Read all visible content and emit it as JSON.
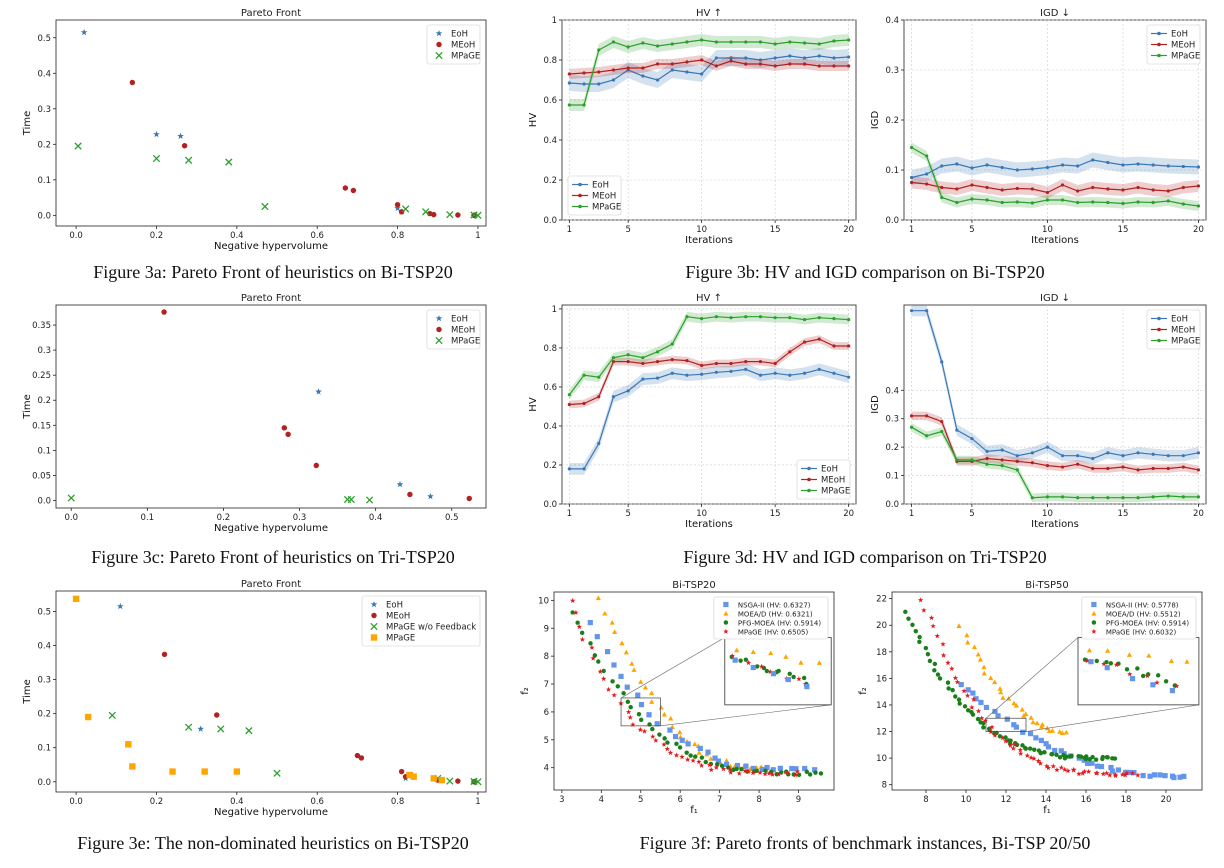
{
  "captions": {
    "fig3a": "Figure 3a: Pareto Front of heuristics on Bi-TSP20",
    "fig3b": "Figure 3b: HV and IGD comparison on Bi-TSP20",
    "fig3c": "Figure 3c: Pareto Front of heuristics on Tri-TSP20",
    "fig3d": "Figure 3d: HV and IGD comparison on Tri-TSP20",
    "fig3e": "Figure 3e: The non-dominated heuristics on Bi-TSP20",
    "fig3f": "Figure 3f: Pareto fronts of benchmark instances, Bi-TSP 20/50"
  },
  "colors": {
    "eoh": "#3a78b5",
    "meoh": "#b22222",
    "mpage": "#2ca02c",
    "mpage_sq": "#ffa500",
    "nsga": "#6495ed",
    "moead": "#ffa500",
    "pfg": "#1a7f1a",
    "mpage_star": "#e41a1c"
  },
  "chart_data": [
    {
      "id": "a",
      "type": "scatter",
      "title": "Pareto Front",
      "xlabel": "Negative hypervolume",
      "ylabel": "Time",
      "xlim": [
        -0.05,
        1.02
      ],
      "ylim": [
        -0.03,
        0.55
      ],
      "xticks": [
        0.0,
        0.2,
        0.4,
        0.6,
        0.8,
        1.0
      ],
      "yticks": [
        0.0,
        0.1,
        0.2,
        0.3,
        0.4,
        0.5
      ],
      "legend": "top-right",
      "series": [
        {
          "name": "EoH",
          "marker": "star",
          "color": "#3a78b5",
          "points": [
            [
              0.02,
              0.515
            ],
            [
              0.2,
              0.228
            ],
            [
              0.26,
              0.223
            ],
            [
              0.8,
              0.02
            ],
            [
              0.81,
              0.01
            ]
          ]
        },
        {
          "name": "MEoH",
          "marker": "circle",
          "color": "#b22222",
          "points": [
            [
              0.14,
              0.374
            ],
            [
              0.27,
              0.196
            ],
            [
              0.67,
              0.077
            ],
            [
              0.69,
              0.07
            ],
            [
              0.8,
              0.03
            ],
            [
              0.81,
              0.01
            ],
            [
              0.88,
              0.005
            ],
            [
              0.89,
              0.002
            ],
            [
              0.95,
              0.001
            ],
            [
              0.99,
              0.0
            ]
          ]
        },
        {
          "name": "MPaGE",
          "marker": "x",
          "color": "#2ca02c",
          "points": [
            [
              0.005,
              0.195
            ],
            [
              0.2,
              0.16
            ],
            [
              0.28,
              0.155
            ],
            [
              0.38,
              0.15
            ],
            [
              0.47,
              0.025
            ],
            [
              0.82,
              0.018
            ],
            [
              0.87,
              0.01
            ],
            [
              0.93,
              0.002
            ],
            [
              0.99,
              0.001
            ],
            [
              1.0,
              0.0
            ]
          ]
        }
      ]
    },
    {
      "id": "b1",
      "type": "line",
      "title": "HV ↑",
      "xlabel": "Iterations",
      "ylabel": "HV",
      "xlim": [
        0.5,
        20.5
      ],
      "ylim": [
        0.0,
        1.0
      ],
      "xticks": [
        1,
        5,
        10,
        15,
        20
      ],
      "yticks": [
        0.0,
        0.2,
        0.4,
        0.6,
        0.8,
        1.0
      ],
      "legend": "bottom-left",
      "x": [
        1,
        2,
        3,
        4,
        5,
        6,
        7,
        8,
        9,
        10,
        11,
        12,
        13,
        14,
        15,
        16,
        17,
        18,
        19,
        20
      ],
      "series": [
        {
          "name": "EoH",
          "color": "#3a78b5",
          "band": 0.04,
          "values": [
            0.685,
            0.68,
            0.68,
            0.7,
            0.75,
            0.72,
            0.7,
            0.75,
            0.74,
            0.73,
            0.81,
            0.81,
            0.81,
            0.8,
            0.81,
            0.82,
            0.81,
            0.82,
            0.81,
            0.815
          ]
        },
        {
          "name": "MEoH",
          "color": "#b22222",
          "band": 0.025,
          "values": [
            0.73,
            0.735,
            0.74,
            0.75,
            0.76,
            0.76,
            0.78,
            0.78,
            0.79,
            0.8,
            0.77,
            0.795,
            0.78,
            0.78,
            0.77,
            0.78,
            0.78,
            0.77,
            0.77,
            0.77
          ]
        },
        {
          "name": "MPaGE",
          "color": "#2ca02c",
          "band": 0.03,
          "values": [
            0.575,
            0.575,
            0.85,
            0.89,
            0.865,
            0.885,
            0.87,
            0.88,
            0.89,
            0.9,
            0.89,
            0.89,
            0.89,
            0.89,
            0.88,
            0.89,
            0.885,
            0.88,
            0.895,
            0.9
          ]
        }
      ]
    },
    {
      "id": "b2",
      "type": "line",
      "title": "IGD ↓",
      "xlabel": "Iterations",
      "ylabel": "IGD",
      "xlim": [
        0.5,
        20.5
      ],
      "ylim": [
        0.0,
        0.4
      ],
      "xticks": [
        1,
        5,
        10,
        15,
        20
      ],
      "yticks": [
        0.0,
        0.1,
        0.2,
        0.3,
        0.4
      ],
      "legend": "top-right",
      "x": [
        1,
        2,
        3,
        4,
        5,
        6,
        7,
        8,
        9,
        10,
        11,
        12,
        13,
        14,
        15,
        16,
        17,
        18,
        19,
        20
      ],
      "series": [
        {
          "name": "EoH",
          "color": "#3a78b5",
          "band": 0.015,
          "values": [
            0.085,
            0.092,
            0.108,
            0.112,
            0.104,
            0.11,
            0.105,
            0.1,
            0.102,
            0.105,
            0.11,
            0.108,
            0.12,
            0.115,
            0.11,
            0.112,
            0.11,
            0.108,
            0.107,
            0.106
          ]
        },
        {
          "name": "MEoH",
          "color": "#b22222",
          "band": 0.012,
          "values": [
            0.075,
            0.072,
            0.065,
            0.062,
            0.07,
            0.065,
            0.06,
            0.063,
            0.062,
            0.055,
            0.07,
            0.058,
            0.065,
            0.062,
            0.06,
            0.065,
            0.06,
            0.058,
            0.065,
            0.068
          ]
        },
        {
          "name": "MPaGE",
          "color": "#2ca02c",
          "band": 0.01,
          "values": [
            0.145,
            0.128,
            0.045,
            0.035,
            0.042,
            0.04,
            0.035,
            0.036,
            0.034,
            0.04,
            0.04,
            0.035,
            0.036,
            0.035,
            0.033,
            0.036,
            0.035,
            0.038,
            0.032,
            0.028
          ]
        }
      ]
    },
    {
      "id": "c",
      "type": "scatter",
      "title": "Pareto Front",
      "xlabel": "Negative hypervolume",
      "ylabel": "Time",
      "xlim": [
        -0.02,
        0.545
      ],
      "ylim": [
        -0.015,
        0.39
      ],
      "xticks": [
        0.0,
        0.1,
        0.2,
        0.3,
        0.4,
        0.5
      ],
      "yticks": [
        0.0,
        0.05,
        0.1,
        0.15,
        0.2,
        0.25,
        0.3,
        0.35
      ],
      "legend": "top-right",
      "series": [
        {
          "name": "EoH",
          "marker": "star",
          "color": "#3a78b5",
          "points": [
            [
              0.325,
              0.217
            ],
            [
              0.432,
              0.032
            ],
            [
              0.472,
              0.008
            ]
          ]
        },
        {
          "name": "MEoH",
          "marker": "circle",
          "color": "#b22222",
          "points": [
            [
              0.122,
              0.376
            ],
            [
              0.28,
              0.145
            ],
            [
              0.285,
              0.132
            ],
            [
              0.322,
              0.07
            ],
            [
              0.445,
              0.012
            ],
            [
              0.523,
              0.004
            ]
          ]
        },
        {
          "name": "MPaGE",
          "marker": "x",
          "color": "#2ca02c",
          "points": [
            [
              0.0,
              0.005
            ],
            [
              0.363,
              0.002
            ],
            [
              0.368,
              0.002
            ],
            [
              0.392,
              0.001
            ]
          ]
        }
      ]
    },
    {
      "id": "d1",
      "type": "line",
      "title": "HV ↑",
      "xlabel": "Iterations",
      "ylabel": "HV",
      "xlim": [
        0.5,
        20.5
      ],
      "ylim": [
        0.0,
        1.02
      ],
      "xticks": [
        1,
        5,
        10,
        15,
        20
      ],
      "yticks": [
        0.0,
        0.2,
        0.4,
        0.6,
        0.8,
        1.0
      ],
      "legend": "bottom-right",
      "x": [
        1,
        2,
        3,
        4,
        5,
        6,
        7,
        8,
        9,
        10,
        11,
        12,
        13,
        14,
        15,
        16,
        17,
        18,
        19,
        20
      ],
      "series": [
        {
          "name": "EoH",
          "color": "#3a78b5",
          "band": 0.03,
          "values": [
            0.18,
            0.18,
            0.31,
            0.55,
            0.58,
            0.64,
            0.645,
            0.67,
            0.66,
            0.665,
            0.675,
            0.68,
            0.69,
            0.66,
            0.67,
            0.66,
            0.67,
            0.69,
            0.67,
            0.65
          ]
        },
        {
          "name": "MEoH",
          "color": "#b22222",
          "band": 0.02,
          "values": [
            0.51,
            0.515,
            0.55,
            0.73,
            0.73,
            0.72,
            0.73,
            0.74,
            0.735,
            0.71,
            0.72,
            0.72,
            0.73,
            0.73,
            0.72,
            0.78,
            0.83,
            0.845,
            0.81,
            0.81
          ]
        },
        {
          "name": "MPaGE",
          "color": "#2ca02c",
          "band": 0.025,
          "values": [
            0.56,
            0.66,
            0.65,
            0.75,
            0.765,
            0.75,
            0.78,
            0.82,
            0.96,
            0.95,
            0.96,
            0.955,
            0.96,
            0.96,
            0.955,
            0.955,
            0.945,
            0.955,
            0.95,
            0.945
          ]
        }
      ]
    },
    {
      "id": "d2",
      "type": "line",
      "title": "IGD ↓",
      "xlabel": "Iterations",
      "ylabel": "IGD",
      "xlim": [
        0.5,
        20.5
      ],
      "ylim": [
        0.0,
        0.7
      ],
      "xticks": [
        1,
        5,
        10,
        15,
        20
      ],
      "yticks": [
        0.0,
        0.1,
        0.2,
        0.3,
        0.4
      ],
      "legend": "top-right",
      "x": [
        1,
        2,
        3,
        4,
        5,
        6,
        7,
        8,
        9,
        10,
        11,
        12,
        13,
        14,
        15,
        16,
        17,
        18,
        19,
        20
      ],
      "series": [
        {
          "name": "EoH",
          "color": "#3a78b5",
          "band": 0.02,
          "values": [
            0.68,
            0.68,
            0.5,
            0.26,
            0.23,
            0.185,
            0.19,
            0.17,
            0.18,
            0.2,
            0.17,
            0.17,
            0.16,
            0.18,
            0.17,
            0.18,
            0.175,
            0.17,
            0.17,
            0.18
          ]
        },
        {
          "name": "MEoH",
          "color": "#b22222",
          "band": 0.015,
          "values": [
            0.31,
            0.31,
            0.29,
            0.15,
            0.15,
            0.16,
            0.155,
            0.15,
            0.145,
            0.135,
            0.13,
            0.14,
            0.125,
            0.125,
            0.13,
            0.12,
            0.125,
            0.125,
            0.13,
            0.12
          ]
        },
        {
          "name": "MPaGE",
          "color": "#2ca02c",
          "band": 0.015,
          "values": [
            0.27,
            0.24,
            0.255,
            0.155,
            0.155,
            0.14,
            0.135,
            0.12,
            0.022,
            0.025,
            0.025,
            0.022,
            0.022,
            0.022,
            0.022,
            0.022,
            0.025,
            0.028,
            0.025,
            0.025
          ]
        }
      ]
    },
    {
      "id": "e",
      "type": "scatter",
      "title": "Pareto Front",
      "xlabel": "Negative hypervolume",
      "ylabel": "Time",
      "xlim": [
        -0.05,
        1.02
      ],
      "ylim": [
        -0.03,
        0.56
      ],
      "xticks": [
        0.0,
        0.2,
        0.4,
        0.6,
        0.8,
        1.0
      ],
      "yticks": [
        0.0,
        0.1,
        0.2,
        0.3,
        0.4,
        0.5
      ],
      "legend": "top-right",
      "series": [
        {
          "name": "EoH",
          "marker": "star",
          "color": "#3a78b5",
          "points": [
            [
              0.11,
              0.515
            ],
            [
              0.31,
              0.155
            ],
            [
              0.82,
              0.01
            ]
          ]
        },
        {
          "name": "MEoH",
          "marker": "circle",
          "color": "#b22222",
          "points": [
            [
              0.22,
              0.374
            ],
            [
              0.35,
              0.196
            ],
            [
              0.7,
              0.077
            ],
            [
              0.71,
              0.07
            ],
            [
              0.81,
              0.03
            ],
            [
              0.82,
              0.015
            ],
            [
              0.9,
              0.005
            ],
            [
              0.95,
              0.002
            ],
            [
              0.99,
              0.0
            ]
          ]
        },
        {
          "name": "MPaGE w/o Feedback",
          "marker": "x",
          "color": "#2ca02c",
          "points": [
            [
              0.09,
              0.195
            ],
            [
              0.28,
              0.16
            ],
            [
              0.36,
              0.155
            ],
            [
              0.43,
              0.15
            ],
            [
              0.5,
              0.025
            ],
            [
              0.83,
              0.018
            ],
            [
              0.9,
              0.01
            ],
            [
              0.93,
              0.002
            ],
            [
              0.99,
              0.001
            ],
            [
              1.0,
              0.0
            ]
          ]
        },
        {
          "name": "MPaGE",
          "marker": "square",
          "color": "#ffa500",
          "points": [
            [
              0.0,
              0.537
            ],
            [
              0.03,
              0.19
            ],
            [
              0.13,
              0.11
            ],
            [
              0.14,
              0.045
            ],
            [
              0.24,
              0.03
            ],
            [
              0.32,
              0.03
            ],
            [
              0.4,
              0.03
            ],
            [
              0.83,
              0.02
            ],
            [
              0.84,
              0.015
            ],
            [
              0.89,
              0.01
            ],
            [
              0.91,
              0.005
            ]
          ]
        }
      ]
    },
    {
      "id": "f1",
      "type": "scatter",
      "title": "Bi-TSP20",
      "xlabel": "f₁",
      "ylabel": "f₂",
      "xlim": [
        2.8,
        9.9
      ],
      "ylim": [
        3.2,
        10.3
      ],
      "xticks": [
        3,
        4,
        5,
        6,
        7,
        8,
        9
      ],
      "yticks": [
        4,
        5,
        6,
        7,
        8,
        9,
        10
      ],
      "legend": "top-right",
      "series": [
        {
          "name": "NSGA-II (HV: 0.6327)",
          "marker": "square",
          "color": "#6495ed"
        },
        {
          "name": "MOEA/D (HV: 0.6321)",
          "marker": "triangle",
          "color": "#ffa500"
        },
        {
          "name": "PFG-MOEA (HV: 0.5914)",
          "marker": "circle",
          "color": "#1a7f1a"
        },
        {
          "name": "MPaGE (HV: 0.6505)",
          "marker": "star",
          "color": "#e41a1c"
        }
      ]
    },
    {
      "id": "f2",
      "type": "scatter",
      "title": "Bi-TSP50",
      "xlabel": "f₁",
      "ylabel": "f₂",
      "xlim": [
        6.3,
        21.8
      ],
      "ylim": [
        7.6,
        22.5
      ],
      "xticks": [
        8,
        10,
        12,
        14,
        16,
        18,
        20
      ],
      "yticks": [
        8,
        10,
        12,
        14,
        16,
        18,
        20,
        22
      ],
      "legend": "top-right",
      "series": [
        {
          "name": "NSGA-II (HV: 0.5778)",
          "marker": "square",
          "color": "#6495ed"
        },
        {
          "name": "MOEA/D (HV: 0.5512)",
          "marker": "triangle",
          "color": "#ffa500"
        },
        {
          "name": "PFG-MOEA (HV: 0.5914)",
          "marker": "circle",
          "color": "#1a7f1a"
        },
        {
          "name": "MPaGE (HV: 0.6032)",
          "marker": "star",
          "color": "#e41a1c"
        }
      ]
    }
  ]
}
